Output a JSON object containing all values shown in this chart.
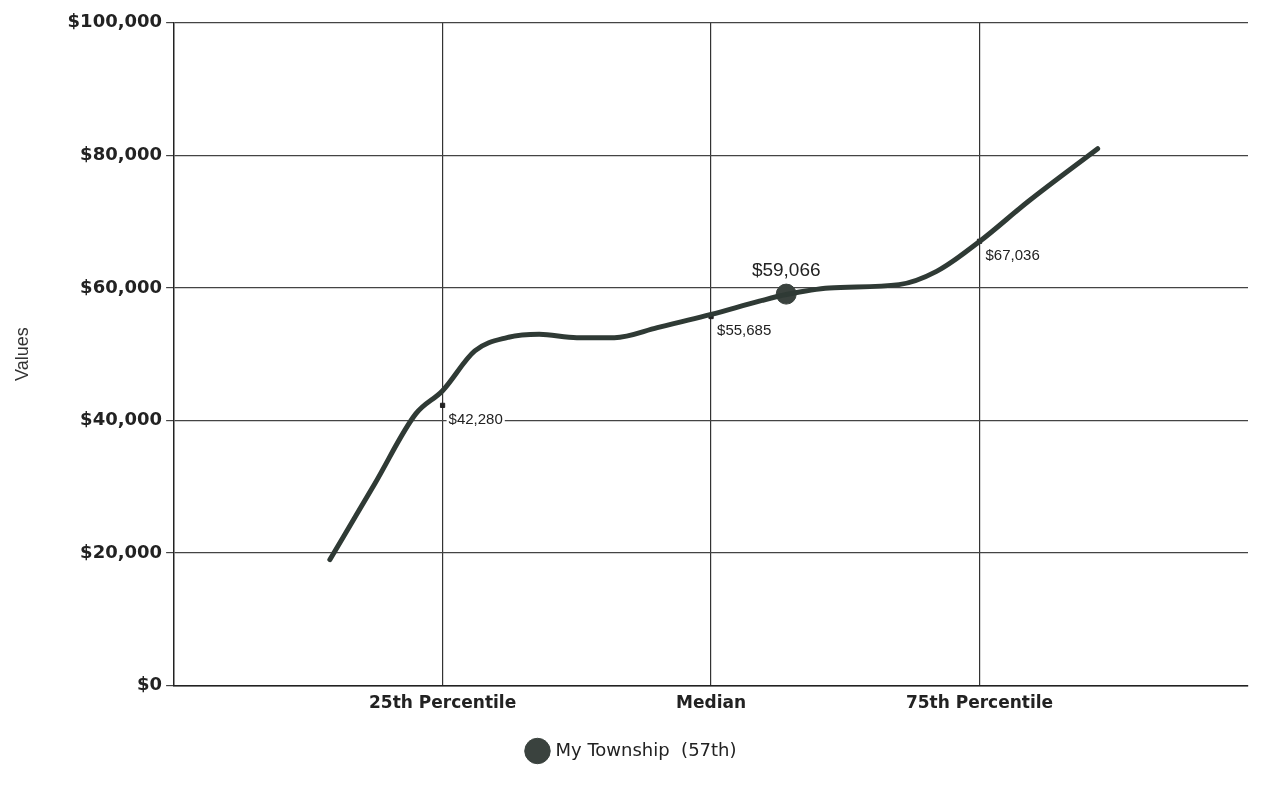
{
  "chart_data": {
    "type": "line",
    "ylabel": "Values",
    "xlim": [
      0,
      100
    ],
    "xticks": [
      {
        "value": 25,
        "label": "25th Percentile"
      },
      {
        "value": 50,
        "label": "Median"
      },
      {
        "value": 75,
        "label": "75th Percentile"
      }
    ],
    "ylim": [
      0,
      100000
    ],
    "yticks": [
      {
        "value": 0,
        "label": "$0"
      },
      {
        "value": 20000,
        "label": "$20,000"
      },
      {
        "value": 40000,
        "label": "$40,000"
      },
      {
        "value": 60000,
        "label": "$60,000"
      },
      {
        "value": 80000,
        "label": "$80,000"
      },
      {
        "value": 100000,
        "label": "$100,000"
      }
    ],
    "grid": true,
    "legend": "bottom",
    "series": [
      {
        "type": "line",
        "color": "#2f3a35",
        "marker": "none",
        "x": [
          14.5,
          18.7,
          22.5,
          25,
          28,
          31,
          34,
          37.5,
          41,
          45,
          50,
          54.5,
          57,
          61,
          67.5,
          71,
          75,
          79.5,
          86
        ],
        "values": [
          19000,
          30500,
          41000,
          44500,
          50500,
          52500,
          53000,
          52500,
          52500,
          54000,
          56000,
          58000,
          59000,
          60000,
          60500,
          62500,
          67000,
          73000,
          81000
        ]
      },
      {
        "type": "scatter",
        "name": "My Township  (57th)",
        "color": "#3a423e",
        "marker": "circle",
        "x": [
          57
        ],
        "values": [
          59066
        ],
        "value_labels": [
          "$59,066"
        ]
      },
      {
        "type": "scatter",
        "color": "#222222",
        "marker": "square",
        "x": [
          25,
          50,
          75
        ],
        "values": [
          42280,
          55685,
          67036
        ],
        "value_labels": [
          "$42,280",
          "$55,685",
          "$67,036"
        ]
      }
    ]
  }
}
